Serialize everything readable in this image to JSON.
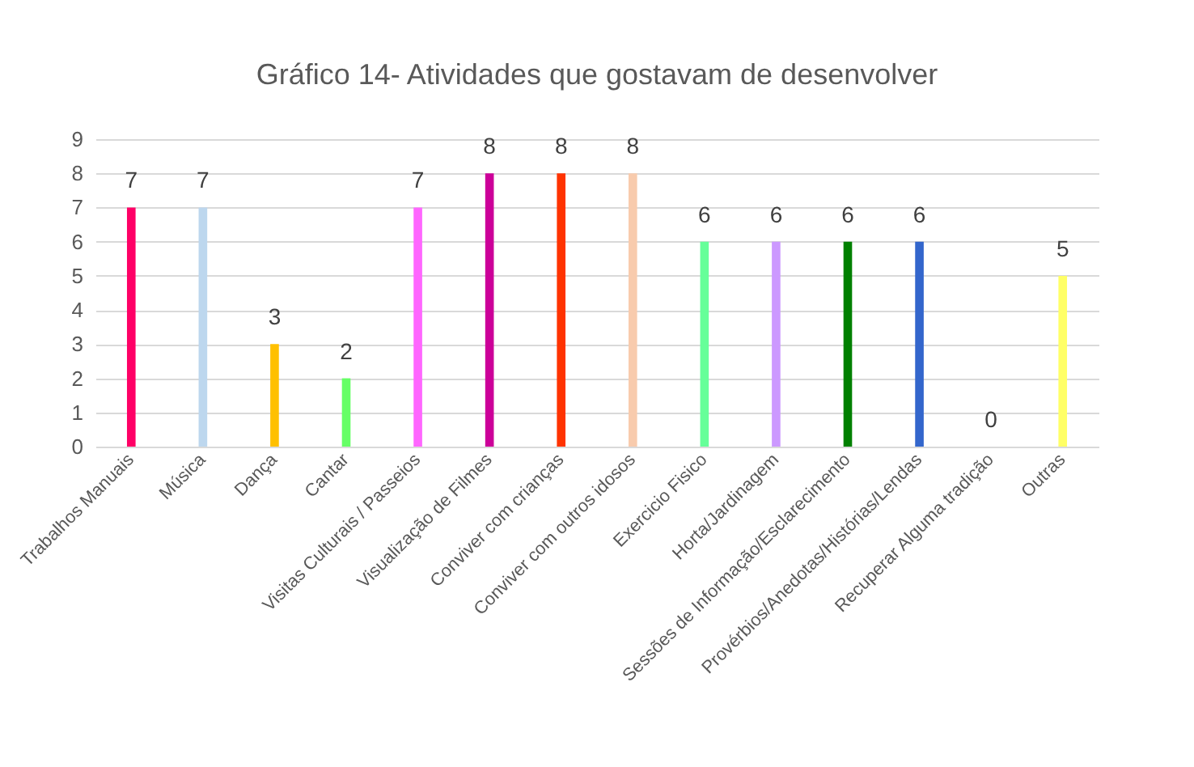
{
  "chart_data": {
    "type": "bar",
    "title": "Gráfico 14- Atividades que gostavam de desenvolver",
    "categories": [
      "Trabalhos Manuais",
      "Música",
      "Dança",
      "Cantar",
      "Visitas Culturais / Passeios",
      "Visualização de Filmes",
      "Conviver com crianças",
      "Conviver com outros idosos",
      "Exercicio Fisico",
      "Horta/Jardinagem",
      "Sessões de Informação/Esclarecimento",
      "Provérbios/Anedotas/Histórias/Lendas",
      "Recuperar Alguma tradição",
      "Outras"
    ],
    "values": [
      7,
      7,
      3,
      2,
      7,
      8,
      8,
      8,
      6,
      6,
      6,
      6,
      0,
      5
    ],
    "colors": [
      "#ff0066",
      "#bdd7ee",
      "#ffc000",
      "#66ff66",
      "#ff66ff",
      "#cc0099",
      "#ff3300",
      "#f8cbad",
      "#66ff99",
      "#cc99ff",
      "#008000",
      "#3366cc",
      "#7030a0",
      "#ffff66"
    ],
    "ylim": [
      0,
      9
    ],
    "yticks": [
      0,
      1,
      2,
      3,
      4,
      5,
      6,
      7,
      8,
      9
    ],
    "grid": "y",
    "data_labels": true
  }
}
